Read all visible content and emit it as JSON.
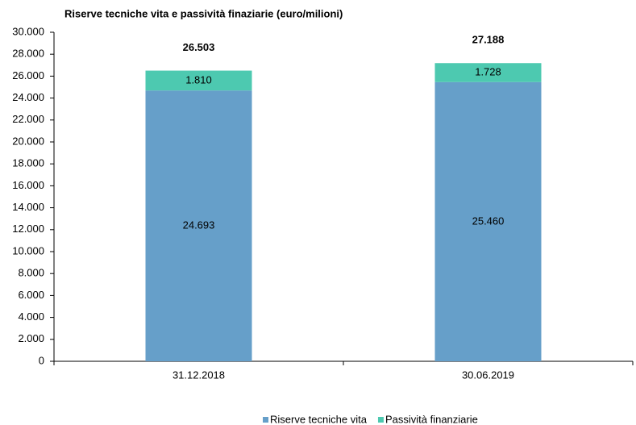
{
  "chart_data": {
    "type": "stacked_bar",
    "title": "Riserve tecniche vita e passività finaziarie (euro/milioni)",
    "categories": [
      "31.12.2018",
      "30.06.2019"
    ],
    "series": [
      {
        "name": "Riserve tecniche vita",
        "color": "#669fc9",
        "values": [
          24693,
          25460
        ],
        "value_labels": [
          "24.693",
          "25.460"
        ]
      },
      {
        "name": "Passività finanziarie",
        "color": "#4dc9b0",
        "values": [
          1810,
          1728
        ],
        "value_labels": [
          "1.810",
          "1.728"
        ]
      }
    ],
    "totals": {
      "values": [
        26503,
        27188
      ],
      "value_labels": [
        "26.503",
        "27.188"
      ]
    },
    "ylim": [
      0,
      30000
    ],
    "yticks": [
      0,
      {
        "value": 2000,
        "label": "2.000"
      },
      {
        "value": 4000,
        "label": "4.000"
      },
      {
        "value": 6000,
        "label": "6.000"
      },
      {
        "value": 8000,
        "label": "8.000"
      },
      {
        "value": 10000,
        "label": "10.000"
      },
      {
        "value": 12000,
        "label": "12.000"
      },
      {
        "value": 14000,
        "label": "14.000"
      },
      {
        "value": 16000,
        "label": "16.000"
      },
      {
        "value": 18000,
        "label": "18.000"
      },
      {
        "value": 20000,
        "label": "20.000"
      },
      {
        "value": 22000,
        "label": "22.000"
      },
      {
        "value": 24000,
        "label": "24.000"
      },
      {
        "value": 26000,
        "label": "26.000"
      },
      {
        "value": 28000,
        "label": "28.000"
      },
      {
        "value": 30000,
        "label": "30.000"
      }
    ],
    "grid": false,
    "legend": "bottom"
  }
}
